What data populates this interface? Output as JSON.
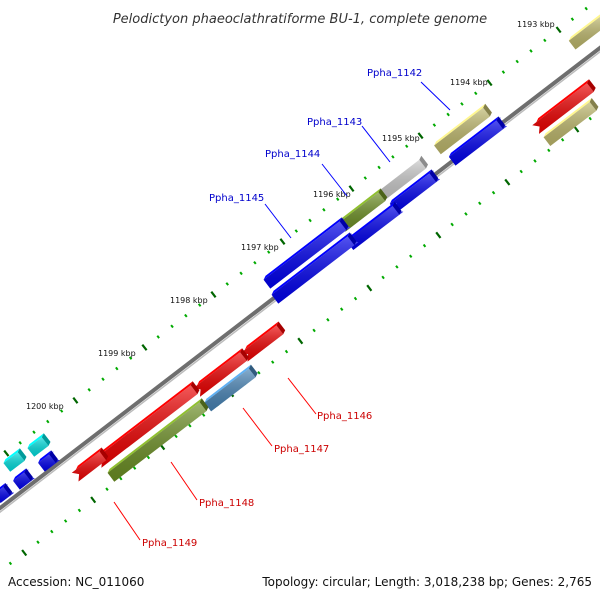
{
  "title": "Pelodictyon phaeoclathratiforme BU-1, complete genome",
  "footer": {
    "accession": "Accession: NC_011060",
    "summary": "Topology: circular; Length: 3,018,238 bp; Genes: 2,765"
  },
  "colors": {
    "backbone": "#8a8a8a",
    "tick_outer": "#00aa00",
    "tick_major": "#006600",
    "label_forward": "#0000cc",
    "label_reverse": "#cc0000",
    "leader_forward": "#0000ff",
    "leader_reverse": "#ff0000",
    "gene_blue": "#0000ee",
    "gene_red": "#ee0000",
    "gene_olive": "#6b8e23",
    "gene_khaki": "#bdb76b",
    "gene_gray": "#c8c8c8",
    "gene_steelblue": "#4682b4",
    "gene_cyan": "#00dddd"
  },
  "scale": {
    "unit": "kbp",
    "labels": [
      {
        "kbp": 1193,
        "text": "1193 kbp"
      },
      {
        "kbp": 1194,
        "text": "1194 kbp"
      },
      {
        "kbp": 1195,
        "text": "1195 kbp"
      },
      {
        "kbp": 1196,
        "text": "1196 kbp"
      },
      {
        "kbp": 1197,
        "text": "1197 kbp"
      },
      {
        "kbp": 1198,
        "text": "1198 kbp"
      },
      {
        "kbp": 1199,
        "text": "1199 kbp"
      },
      {
        "kbp": 1200,
        "text": "1200 kbp"
      }
    ]
  },
  "gene_labels": [
    {
      "id": "Ppha_1142",
      "text": "Ppha_1142",
      "strand": "forward"
    },
    {
      "id": "Ppha_1143",
      "text": "Ppha_1143",
      "strand": "forward"
    },
    {
      "id": "Ppha_1144",
      "text": "Ppha_1144",
      "strand": "forward"
    },
    {
      "id": "Ppha_1145",
      "text": "Ppha_1145",
      "strand": "forward"
    },
    {
      "id": "Ppha_1146",
      "text": "Ppha_1146",
      "strand": "reverse"
    },
    {
      "id": "Ppha_1147",
      "text": "Ppha_1147",
      "strand": "reverse"
    },
    {
      "id": "Ppha_1148",
      "text": "Ppha_1148",
      "strand": "reverse"
    },
    {
      "id": "Ppha_1149",
      "text": "Ppha_1149",
      "strand": "reverse"
    }
  ]
}
